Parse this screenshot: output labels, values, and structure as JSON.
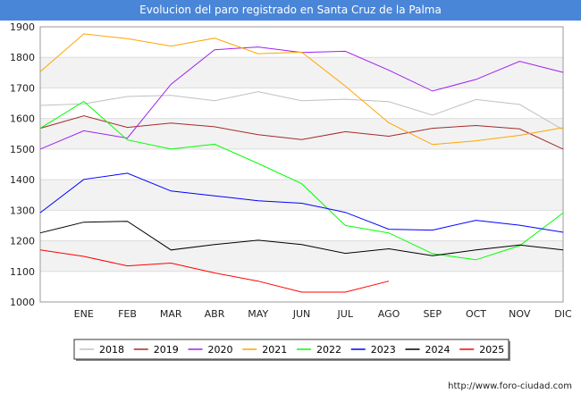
{
  "chart_data": {
    "type": "line",
    "title": "Evolucion del paro registrado en Santa Cruz de la Palma",
    "categories": [
      "",
      "ENE",
      "FEB",
      "MAR",
      "ABR",
      "MAY",
      "JUN",
      "JUL",
      "AGO",
      "SEP",
      "OCT",
      "NOV",
      "DIC"
    ],
    "ylim": [
      1000,
      1900
    ],
    "yticks": [
      1000,
      1100,
      1200,
      1300,
      1400,
      1500,
      1600,
      1700,
      1800,
      1900
    ],
    "grid": true,
    "legend_position": "bottom",
    "series": [
      {
        "name": "2018",
        "color": "#c0c0c0",
        "values": [
          1643,
          1648,
          1672,
          1676,
          1658,
          1688,
          1658,
          1663,
          1655,
          1611,
          1662,
          1646,
          1563
        ]
      },
      {
        "name": "2019",
        "color": "#a52a2a",
        "values": [
          1568,
          1609,
          1571,
          1585,
          1573,
          1547,
          1531,
          1557,
          1542,
          1568,
          1577,
          1566,
          1500
        ]
      },
      {
        "name": "2020",
        "color": "#a020f0",
        "values": [
          1500,
          1560,
          1536,
          1712,
          1825,
          1834,
          1816,
          1820,
          1758,
          1690,
          1728,
          1787,
          1751
        ]
      },
      {
        "name": "2021",
        "color": "#ffa500",
        "values": [
          1753,
          1877,
          1861,
          1837,
          1863,
          1812,
          1817,
          1706,
          1586,
          1515,
          1527,
          1545,
          1570
        ]
      },
      {
        "name": "2022",
        "color": "#00ff00",
        "values": [
          1568,
          1656,
          1530,
          1500,
          1516,
          1453,
          1387,
          1250,
          1226,
          1158,
          1138,
          1184,
          1291
        ]
      },
      {
        "name": "2023",
        "color": "#0000ff",
        "values": [
          1292,
          1401,
          1421,
          1363,
          1347,
          1331,
          1323,
          1293,
          1238,
          1235,
          1267,
          1251,
          1228
        ]
      },
      {
        "name": "2024",
        "color": "#000000",
        "values": [
          1226,
          1261,
          1264,
          1170,
          1188,
          1202,
          1188,
          1159,
          1174,
          1151,
          1170,
          1186,
          1170
        ]
      },
      {
        "name": "2025",
        "color": "#ff0000",
        "values": [
          1170,
          1149,
          1118,
          1127,
          1095,
          1068,
          1032,
          1032,
          1068,
          null,
          null,
          null,
          null
        ]
      }
    ]
  },
  "footer": {
    "url": "http://www.foro-ciudad.com"
  }
}
